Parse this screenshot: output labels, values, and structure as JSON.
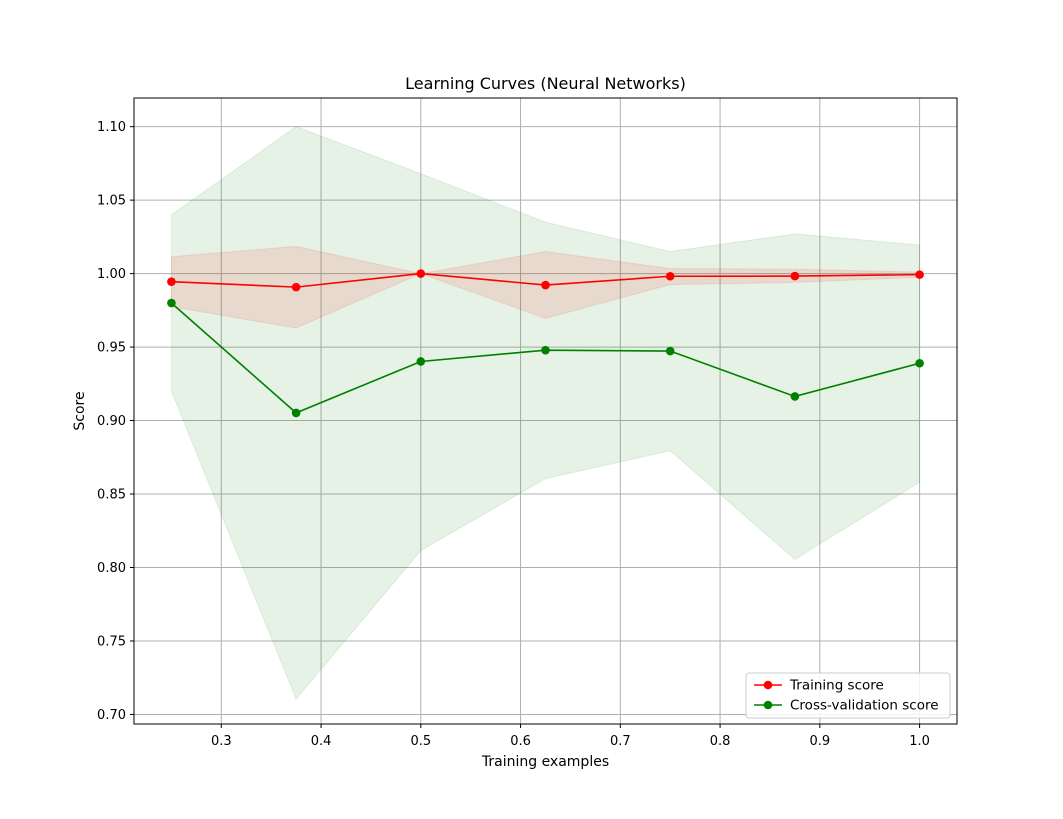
{
  "chart_data": {
    "type": "line",
    "title": "Learning Curves (Neural Networks)",
    "xlabel": "Training examples",
    "ylabel": "Score",
    "xlim": [
      0.2125,
      1.0375
    ],
    "ylim": [
      0.6935,
      1.1195
    ],
    "xticks": [
      0.3,
      0.4,
      0.5,
      0.6,
      0.7,
      0.8,
      0.9,
      1.0
    ],
    "xtick_labels": [
      "0.3",
      "0.4",
      "0.5",
      "0.6",
      "0.7",
      "0.8",
      "0.9",
      "1.0"
    ],
    "yticks": [
      0.7,
      0.75,
      0.8,
      0.85,
      0.9,
      0.95,
      1.0,
      1.05,
      1.1
    ],
    "ytick_labels": [
      "0.70",
      "0.75",
      "0.80",
      "0.85",
      "0.90",
      "0.95",
      "1.00",
      "1.05",
      "1.10"
    ],
    "grid": true,
    "legend_position": "lower-right",
    "x": [
      0.25,
      0.375,
      0.5,
      0.625,
      0.75,
      0.875,
      1.0
    ],
    "series": [
      {
        "name": "Training score",
        "color": "#ff0000",
        "values": [
          0.9945,
          0.9908,
          1.0,
          0.9922,
          0.9982,
          0.9983,
          0.9993
        ],
        "band_upper": [
          1.0115,
          1.0185,
          1.0,
          1.015,
          1.0035,
          1.003,
          1.001
        ],
        "band_lower": [
          0.9775,
          0.963,
          1.0,
          0.9695,
          0.9925,
          0.994,
          0.9975
        ]
      },
      {
        "name": "Cross-validation score",
        "color": "#008000",
        "values": [
          0.98,
          0.9052,
          0.9402,
          0.9479,
          0.9473,
          0.9164,
          0.939
        ],
        "band_upper": [
          1.04,
          1.1,
          1.068,
          1.035,
          1.015,
          1.027,
          1.0195
        ],
        "band_lower": [
          0.92,
          0.7105,
          0.8115,
          0.8605,
          0.8795,
          0.8055,
          0.858
        ]
      }
    ]
  }
}
